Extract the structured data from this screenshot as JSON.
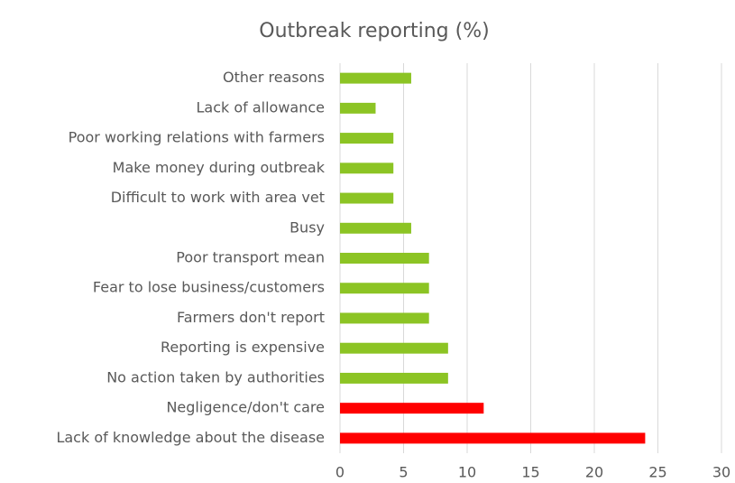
{
  "chart_data": {
    "type": "bar",
    "orientation": "horizontal",
    "title": "Outbreak reporting (%)",
    "categories": [
      "Other reasons",
      "Lack of allowance",
      "Poor working relations with farmers",
      "Make money during outbreak",
      "Difficult to work with area vet",
      "Busy",
      "Poor transport mean",
      "Fear to lose business/customers",
      "Farmers don't report",
      "Reporting is expensive",
      "No action taken by authorities",
      "Negligence/don't care",
      "Lack of knowledge about the disease"
    ],
    "values": [
      5.6,
      2.8,
      4.2,
      4.2,
      4.2,
      5.6,
      7.0,
      7.0,
      7.0,
      8.5,
      8.5,
      11.3,
      24.0
    ],
    "colors": [
      "#8cc424",
      "#8cc424",
      "#8cc424",
      "#8cc424",
      "#8cc424",
      "#8cc424",
      "#8cc424",
      "#8cc424",
      "#8cc424",
      "#8cc424",
      "#8cc424",
      "#ff0000",
      "#ff0000"
    ],
    "xlim": [
      0,
      30
    ],
    "xticks": [
      0,
      5,
      10,
      15,
      20,
      25,
      30
    ],
    "grid": true
  }
}
